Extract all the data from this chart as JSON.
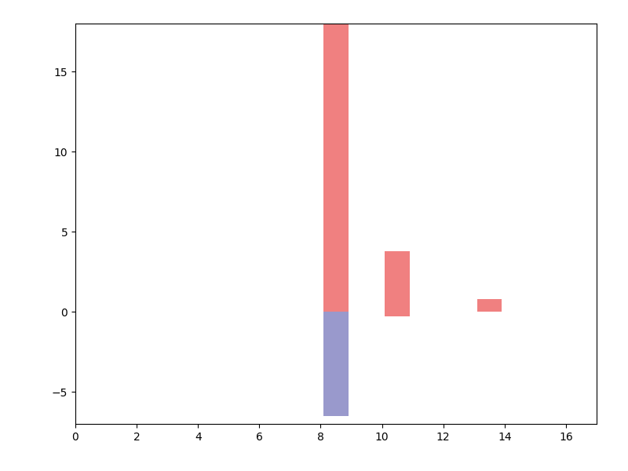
{
  "xlim": [
    0,
    17
  ],
  "ylim": [
    -7,
    18
  ],
  "xticks": [
    0,
    2,
    4,
    6,
    8,
    10,
    12,
    14,
    16
  ],
  "yticks": [
    -5,
    0,
    5,
    10,
    15
  ],
  "bars": [
    {
      "x": 8.5,
      "bottom": 0,
      "height": 18,
      "color": "#f08080"
    },
    {
      "x": 8.5,
      "bottom": -6.5,
      "height": 6.5,
      "color": "#9999cc"
    },
    {
      "x": 10.5,
      "bottom": -0.3,
      "height": 4.1,
      "color": "#f08080"
    },
    {
      "x": 13.5,
      "bottom": 0,
      "height": 0.8,
      "color": "#f08080"
    }
  ],
  "bar_width": 0.8,
  "figsize": [
    8.0,
    6.0
  ],
  "dpi": 100,
  "background_color": "#ffffff"
}
